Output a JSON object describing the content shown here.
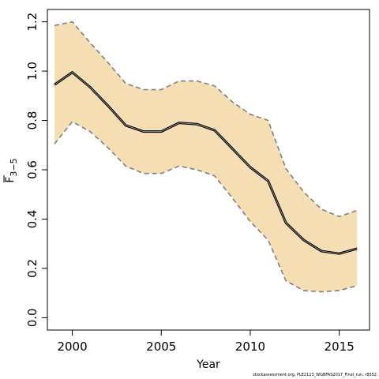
{
  "chart_data": {
    "type": "area",
    "xlabel": "Year",
    "ylabel_main": "F",
    "ylabel_sub": "3−5",
    "xlim": [
      1998.6,
      2016.7
    ],
    "ylim": [
      -0.05,
      1.25
    ],
    "xticks": [
      2000,
      2005,
      2010,
      2015
    ],
    "yticks": [
      0.0,
      0.2,
      0.4,
      0.6,
      0.8,
      1.0,
      1.2
    ],
    "ytick_labels": [
      "0.0",
      "0.2",
      "0.4",
      "0.6",
      "0.8",
      "1.0",
      "1.2"
    ],
    "grid": false,
    "band_color": "#f5deb3",
    "line_color": "#000000",
    "bound_color": "#7f7f7f",
    "x": [
      1999,
      2000,
      2001,
      2002,
      2003,
      2004,
      2005,
      2006,
      2007,
      2008,
      2009,
      2010,
      2011,
      2012,
      2013,
      2014,
      2015,
      2016
    ],
    "series": [
      {
        "role": "estimate",
        "values": [
          0.945,
          0.995,
          0.935,
          0.86,
          0.78,
          0.755,
          0.755,
          0.79,
          0.785,
          0.76,
          0.685,
          0.61,
          0.555,
          0.385,
          0.315,
          0.27,
          0.26,
          0.28
        ]
      },
      {
        "role": "upper",
        "values": [
          1.185,
          1.2,
          1.115,
          1.035,
          0.95,
          0.925,
          0.925,
          0.96,
          0.96,
          0.94,
          0.875,
          0.825,
          0.8,
          0.605,
          0.51,
          0.44,
          0.41,
          0.435
        ]
      },
      {
        "role": "lower",
        "values": [
          0.705,
          0.795,
          0.755,
          0.69,
          0.615,
          0.585,
          0.585,
          0.615,
          0.6,
          0.575,
          0.485,
          0.39,
          0.315,
          0.15,
          0.11,
          0.105,
          0.11,
          0.13
        ]
      }
    ]
  },
  "footnote": "stockassessment.org, PLE2123_WGBFAS2017_Final_run, r8552"
}
